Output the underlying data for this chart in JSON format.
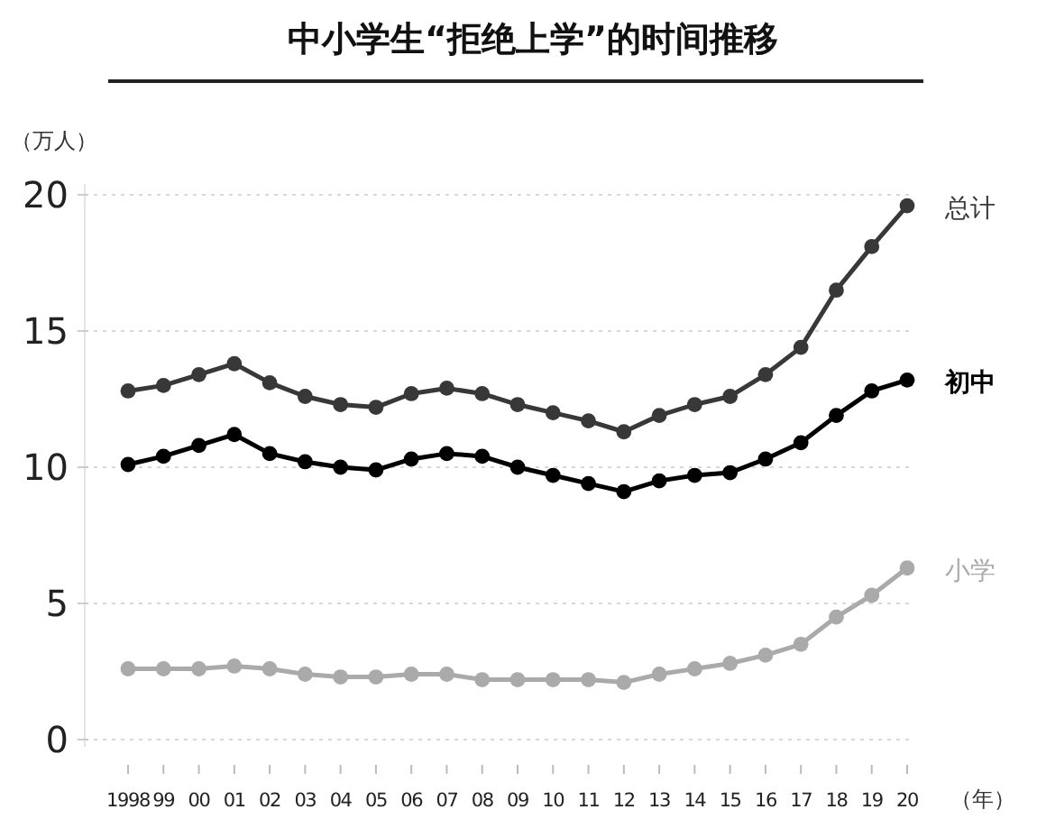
{
  "chart_data": {
    "type": "line",
    "title": "中小学生“拒绝上学”的时间推移",
    "ylabel": "（万人）",
    "xlabel": "（年）",
    "categories": [
      "1998",
      "99",
      "00",
      "01",
      "02",
      "03",
      "04",
      "05",
      "06",
      "07",
      "08",
      "09",
      "10",
      "11",
      "12",
      "13",
      "14",
      "15",
      "16",
      "17",
      "18",
      "19",
      "20"
    ],
    "series": [
      {
        "name": "总计",
        "color": "#383838",
        "values": [
          12.8,
          13.0,
          13.4,
          13.8,
          13.1,
          12.6,
          12.3,
          12.2,
          12.7,
          12.9,
          12.7,
          12.3,
          12.0,
          11.7,
          11.3,
          11.9,
          12.3,
          12.6,
          13.4,
          14.4,
          16.5,
          18.1,
          19.6
        ]
      },
      {
        "name": "初中",
        "color": "#000000",
        "values": [
          10.1,
          10.4,
          10.8,
          11.2,
          10.5,
          10.2,
          10.0,
          9.9,
          10.3,
          10.5,
          10.4,
          10.0,
          9.7,
          9.4,
          9.1,
          9.5,
          9.7,
          9.8,
          10.3,
          10.9,
          11.9,
          12.8,
          13.2
        ]
      },
      {
        "name": "小学",
        "color": "#aaaaaa",
        "values": [
          2.6,
          2.6,
          2.6,
          2.7,
          2.6,
          2.4,
          2.3,
          2.3,
          2.4,
          2.4,
          2.2,
          2.2,
          2.2,
          2.2,
          2.1,
          2.4,
          2.6,
          2.8,
          3.1,
          3.5,
          4.5,
          5.3,
          6.3
        ]
      }
    ],
    "ylim": [
      0,
      20
    ],
    "yticks": [
      0,
      5,
      10,
      15,
      20
    ],
    "grid": "y",
    "marker": "circle",
    "line_style": "solid"
  }
}
